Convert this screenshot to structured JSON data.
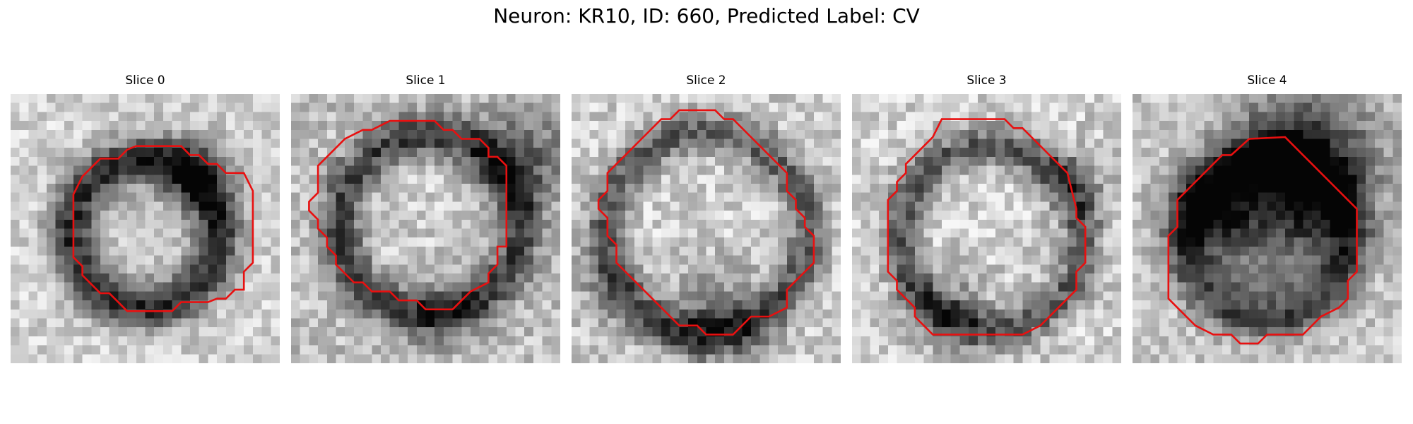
{
  "figure": {
    "title": "Neuron: KR10, ID: 660, Predicted Label: CV"
  },
  "colors": {
    "contour": "#e81010",
    "background": "#ffffff"
  },
  "slices": [
    {
      "title": "Slice 0"
    },
    {
      "title": "Slice 1"
    },
    {
      "title": "Slice 2"
    },
    {
      "title": "Slice 3"
    },
    {
      "title": "Slice 4"
    }
  ]
}
